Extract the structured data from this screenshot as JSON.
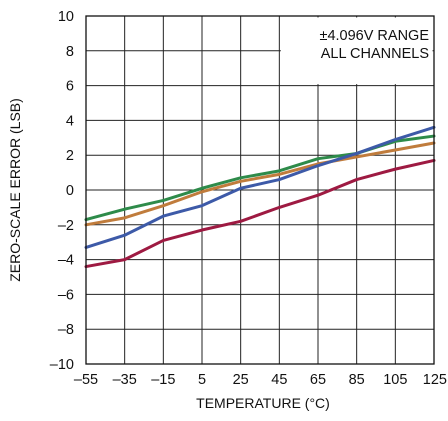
{
  "chart_data": {
    "type": "line",
    "xlabel": "TEMPERATURE (°C)",
    "ylabel": "ZERO-SCALE ERROR (LSB)",
    "xlim": [
      -55,
      125
    ],
    "ylim": [
      -10,
      10
    ],
    "x_ticks": [
      -55,
      -35,
      -15,
      5,
      25,
      45,
      65,
      85,
      105,
      125
    ],
    "x_tick_labels": [
      "–55",
      "–35",
      "–15",
      "5",
      "25",
      "45",
      "65",
      "85",
      "105",
      "125"
    ],
    "y_ticks": [
      -10,
      -8,
      -6,
      -4,
      -2,
      0,
      2,
      4,
      6,
      8,
      10
    ],
    "y_tick_labels": [
      "–10",
      "–8",
      "–6",
      "–4",
      "–2",
      "0",
      "2",
      "4",
      "6",
      "8",
      "10"
    ],
    "grid": true,
    "annotation": [
      "±4.096V RANGE",
      "ALL CHANNELS"
    ],
    "x": [
      -55,
      -35,
      -15,
      5,
      25,
      45,
      65,
      85,
      105,
      125
    ],
    "series": [
      {
        "color": "#2e8b4a",
        "values": [
          -1.7,
          -1.1,
          -0.6,
          0.1,
          0.7,
          1.1,
          1.8,
          2.1,
          2.8,
          3.1
        ]
      },
      {
        "color": "#c07c3c",
        "values": [
          -2.0,
          -1.6,
          -0.9,
          -0.1,
          0.5,
          0.9,
          1.5,
          1.9,
          2.3,
          2.7
        ]
      },
      {
        "color": "#3d5aa8",
        "values": [
          -3.3,
          -2.6,
          -1.5,
          -0.9,
          0.1,
          0.6,
          1.4,
          2.1,
          2.9,
          3.6
        ]
      },
      {
        "color": "#9e1a42",
        "values": [
          -4.4,
          -4.0,
          -2.9,
          -2.3,
          -1.8,
          -1.0,
          -0.3,
          0.6,
          1.2,
          1.7
        ]
      }
    ]
  }
}
